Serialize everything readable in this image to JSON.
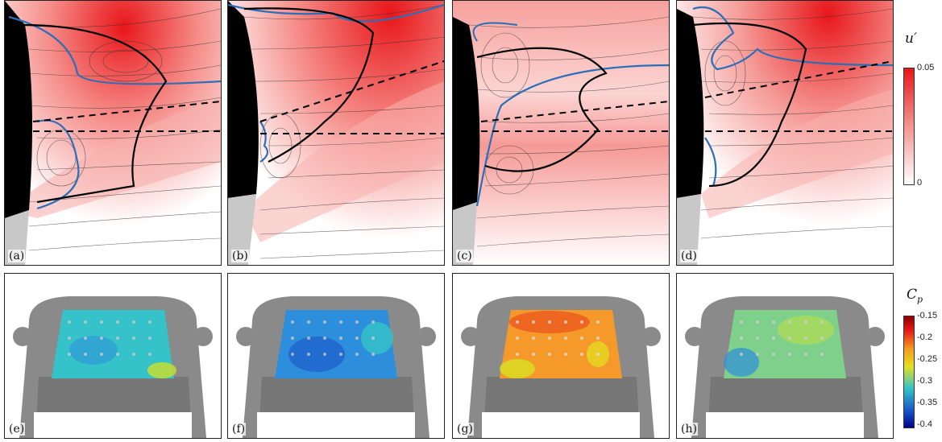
{
  "top_row": {
    "labels": [
      "(a)",
      "(b)",
      "(c)",
      "(d)"
    ],
    "colorbar": {
      "symbol": "u′",
      "max": "0.05",
      "min": "0",
      "color_high": "#e8161a",
      "color_low": "#ffffff"
    }
  },
  "bottom_row": {
    "labels": [
      "(e)",
      "(f)",
      "(g)",
      "(h)"
    ],
    "colorbar": {
      "symbol": "C",
      "subscript": "p",
      "ticks": [
        "-0.15",
        "-0.2",
        "-0.25",
        "-0.3",
        "-0.35",
        "-0.4"
      ]
    },
    "panel_fill_colors": [
      "#35c2c8",
      "#2d8fdc",
      "#f59a2a",
      "#7fd08a"
    ]
  }
}
